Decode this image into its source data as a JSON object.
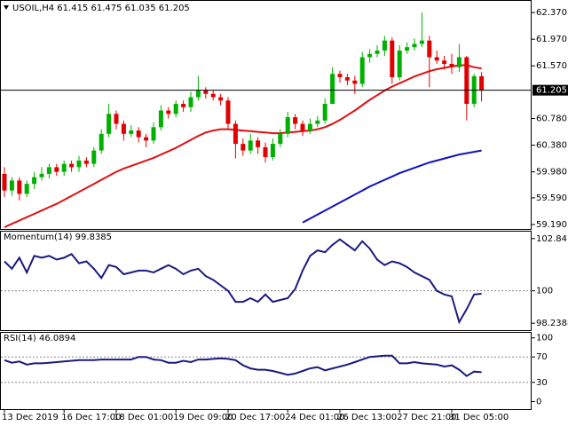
{
  "chart_data": [
    {
      "type": "candlestick",
      "title": "USOIL,H4  61.415 61.475 61.035 61.205",
      "categories": [
        "13 Dec 2019",
        null,
        null,
        null,
        null,
        null,
        null,
        null,
        "16 Dec 17:00",
        null,
        null,
        null,
        null,
        null,
        null,
        "18 Dec 01:00",
        null,
        null,
        null,
        null,
        null,
        null,
        null,
        "19 Dec 09:00",
        null,
        null,
        null,
        null,
        null,
        null,
        "20 Dec 17:00",
        null,
        null,
        null,
        null,
        null,
        null,
        null,
        "24 Dec 01:00",
        null,
        null,
        null,
        null,
        null,
        null,
        "26 Dec 13:00",
        null,
        null,
        null,
        null,
        null,
        null,
        null,
        "27 Dec 21:00",
        null,
        null,
        null,
        null,
        null,
        null,
        "31 Dec 05:00",
        null,
        null,
        null,
        null
      ],
      "open": [
        59.95,
        59.7,
        59.85,
        59.65,
        59.8,
        59.9,
        59.95,
        60.05,
        59.98,
        60.1,
        60.05,
        60.15,
        60.1,
        60.3,
        60.55,
        60.85,
        60.7,
        60.55,
        60.6,
        60.5,
        60.45,
        60.65,
        60.9,
        60.85,
        61.0,
        60.95,
        61.1,
        61.2,
        61.15,
        61.1,
        61.05,
        60.7,
        60.4,
        60.3,
        60.45,
        60.35,
        60.2,
        60.4,
        60.55,
        60.8,
        60.7,
        60.6,
        60.7,
        60.75,
        61.0,
        61.45,
        61.4,
        61.35,
        61.3,
        61.7,
        61.75,
        61.8,
        61.95,
        61.4,
        61.8,
        61.85,
        61.9,
        61.95,
        61.7,
        61.65,
        61.6,
        61.55,
        61.7,
        61.0,
        61.415
      ],
      "high": [
        60.05,
        59.9,
        59.9,
        59.85,
        59.98,
        60.05,
        60.1,
        60.1,
        60.15,
        60.15,
        60.22,
        60.2,
        60.35,
        60.62,
        61.0,
        60.9,
        60.75,
        60.68,
        60.65,
        60.55,
        60.72,
        60.98,
        60.95,
        61.05,
        61.05,
        61.18,
        61.42,
        61.25,
        61.2,
        61.15,
        61.1,
        60.75,
        60.48,
        60.55,
        60.5,
        60.42,
        60.48,
        60.62,
        60.88,
        60.85,
        60.75,
        60.78,
        60.82,
        61.08,
        61.55,
        61.5,
        61.45,
        61.42,
        61.78,
        61.82,
        61.88,
        62.02,
        62.0,
        61.88,
        61.92,
        61.98,
        62.37,
        62.02,
        61.8,
        61.72,
        61.75,
        61.9,
        61.72,
        61.45,
        61.475
      ],
      "low": [
        59.6,
        59.62,
        59.55,
        59.6,
        59.72,
        59.85,
        59.88,
        59.92,
        59.92,
        59.98,
        59.98,
        60.05,
        60.05,
        60.25,
        60.5,
        60.62,
        60.45,
        60.5,
        60.42,
        60.35,
        60.4,
        60.6,
        60.78,
        60.8,
        60.88,
        60.88,
        61.05,
        61.08,
        61.05,
        60.98,
        60.62,
        60.18,
        60.22,
        60.25,
        60.25,
        60.12,
        60.15,
        60.35,
        60.5,
        60.62,
        60.52,
        60.55,
        60.65,
        60.7,
        61.0,
        61.32,
        61.28,
        61.15,
        61.25,
        61.62,
        61.7,
        61.72,
        61.3,
        61.35,
        61.75,
        61.8,
        61.85,
        61.25,
        61.6,
        61.52,
        61.45,
        61.48,
        60.75,
        60.95,
        61.035
      ],
      "close": [
        59.7,
        59.85,
        59.65,
        59.8,
        59.9,
        59.95,
        60.05,
        59.98,
        60.1,
        60.05,
        60.15,
        60.1,
        60.3,
        60.55,
        60.85,
        60.7,
        60.55,
        60.6,
        60.5,
        60.45,
        60.65,
        60.9,
        60.85,
        61.0,
        60.95,
        61.1,
        61.2,
        61.15,
        61.1,
        61.05,
        60.7,
        60.4,
        60.3,
        60.45,
        60.35,
        60.2,
        60.4,
        60.55,
        60.8,
        60.7,
        60.6,
        60.7,
        60.75,
        61.0,
        61.45,
        61.4,
        61.35,
        61.3,
        61.7,
        61.75,
        61.8,
        61.95,
        61.4,
        61.8,
        61.85,
        61.9,
        61.95,
        61.7,
        61.65,
        61.6,
        61.55,
        61.7,
        61.0,
        61.415,
        61.205
      ],
      "up_color": "#00b000",
      "down_color": "#e00000",
      "series": [
        {
          "color": "#e01010",
          "values": [
            59.15,
            59.2,
            59.25,
            59.3,
            59.35,
            59.4,
            59.45,
            59.5,
            59.56,
            59.62,
            59.68,
            59.74,
            59.8,
            59.86,
            59.92,
            59.98,
            60.03,
            60.07,
            60.11,
            60.15,
            60.19,
            60.24,
            60.29,
            60.34,
            60.4,
            60.46,
            60.52,
            60.57,
            60.6,
            60.62,
            60.62,
            60.61,
            60.6,
            60.59,
            60.58,
            60.57,
            60.56,
            60.56,
            60.57,
            60.58,
            60.59,
            60.6,
            60.62,
            60.65,
            60.7,
            60.76,
            60.83,
            60.9,
            60.98,
            61.06,
            61.13,
            61.2,
            61.26,
            61.31,
            61.36,
            61.41,
            61.45,
            61.49,
            61.52,
            61.54,
            61.56,
            61.58,
            61.58,
            61.55,
            61.53
          ]
        },
        {
          "color": "#1010c0",
          "values": [
            null,
            null,
            null,
            null,
            null,
            null,
            null,
            null,
            null,
            null,
            null,
            null,
            null,
            null,
            null,
            null,
            null,
            null,
            null,
            null,
            null,
            null,
            null,
            null,
            null,
            null,
            null,
            null,
            null,
            null,
            null,
            null,
            null,
            null,
            null,
            null,
            null,
            null,
            null,
            null,
            59.22,
            59.28,
            59.34,
            59.4,
            59.46,
            59.52,
            59.58,
            59.64,
            59.7,
            59.76,
            59.81,
            59.86,
            59.91,
            59.96,
            60.0,
            60.04,
            60.08,
            60.12,
            60.15,
            60.18,
            60.21,
            60.24,
            60.26,
            60.28,
            60.3
          ]
        }
      ],
      "last_price": {
        "value": 61.205,
        "label": "61.205"
      },
      "ylim": [
        59.123,
        62.545
      ],
      "yticks": [
        {
          "value": 62.37,
          "label": "62.370"
        },
        {
          "value": 61.97,
          "label": "61.970"
        },
        {
          "value": 61.57,
          "label": "61.570"
        },
        {
          "value": 60.78,
          "label": "60.780"
        },
        {
          "value": 60.38,
          "label": "60.380"
        },
        {
          "value": 59.98,
          "label": "59.980"
        },
        {
          "value": 59.59,
          "label": "59.590"
        },
        {
          "value": 59.19,
          "label": "59.190"
        }
      ]
    },
    {
      "type": "line",
      "title": "Momentum(14) 99.8385",
      "color": "#1a1a80",
      "values": [
        101.6,
        101.2,
        101.8,
        101.0,
        101.9,
        101.8,
        101.9,
        101.7,
        101.8,
        102.0,
        101.5,
        101.6,
        101.2,
        100.7,
        101.4,
        101.3,
        100.9,
        101.0,
        101.1,
        101.1,
        101.0,
        101.2,
        101.4,
        101.2,
        100.9,
        101.1,
        101.2,
        100.8,
        100.6,
        100.3,
        100.0,
        99.4,
        99.4,
        99.6,
        99.4,
        99.8,
        99.4,
        99.5,
        99.6,
        100.1,
        101.1,
        101.9,
        102.2,
        102.1,
        102.5,
        102.8,
        102.5,
        102.2,
        102.7,
        102.3,
        101.7,
        101.4,
        101.6,
        101.5,
        101.3,
        101.0,
        100.8,
        100.6,
        100.0,
        99.8,
        99.7,
        98.3,
        99.0,
        99.8,
        99.8385
      ],
      "ylim": [
        97.86,
        103.22
      ],
      "yticks": [
        102.8412,
        100,
        98.2388
      ],
      "levels": [
        100
      ]
    },
    {
      "type": "line",
      "title": "RSI(14) 46.0894",
      "color": "#1a1a80",
      "values": [
        65,
        61,
        63,
        58,
        60,
        60,
        61,
        62,
        63,
        64,
        65,
        65,
        65,
        66,
        66,
        66,
        66,
        66,
        70,
        70,
        66,
        65,
        61,
        61,
        64,
        62,
        66,
        66,
        67,
        68,
        67,
        65,
        57,
        52,
        50,
        50,
        48,
        45,
        42,
        44,
        48,
        52,
        54,
        49,
        52,
        55,
        58,
        62,
        66,
        70,
        71,
        72,
        72,
        60,
        60,
        62,
        60,
        59,
        58,
        55,
        57,
        50,
        40,
        47,
        46.0894
      ],
      "ylim": [
        -12,
        108
      ],
      "yticks": [
        100,
        70,
        30,
        0
      ],
      "levels": [
        70,
        30
      ]
    }
  ]
}
